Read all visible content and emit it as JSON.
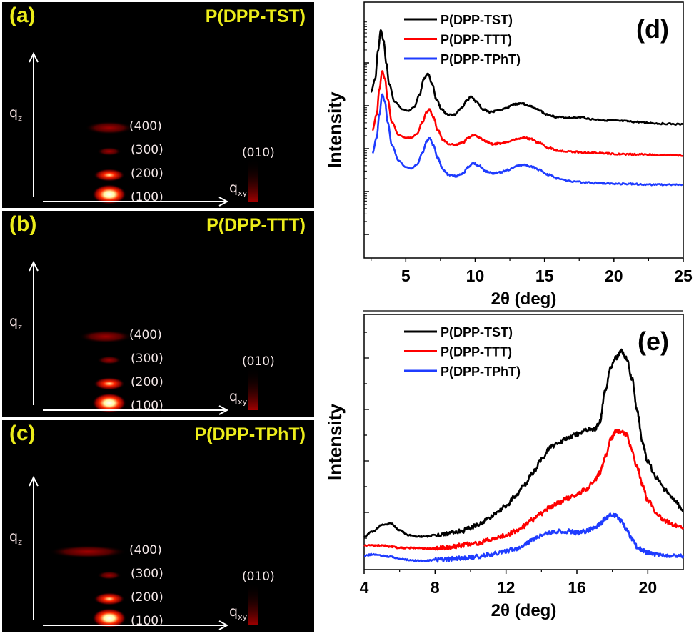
{
  "gixd_panels": [
    {
      "label": "(a)",
      "title": "P(DPP-TST)",
      "qz_label": "q",
      "qz_sub": "z",
      "qxy_label": "q",
      "qxy_sub": "xy",
      "reflections": [
        "(400)",
        "(300)",
        "(200)",
        "(100)",
        "(010)"
      ]
    },
    {
      "label": "(b)",
      "title": "P(DPP-TTT)",
      "qz_label": "q",
      "qz_sub": "z",
      "qxy_label": "q",
      "qxy_sub": "xy",
      "reflections": [
        "(400)",
        "(300)",
        "(200)",
        "(100)",
        "(010)"
      ]
    },
    {
      "label": "(c)",
      "title": "P(DPP-TPhT)",
      "qz_label": "q",
      "qz_sub": "z",
      "qxy_label": "q",
      "qxy_sub": "xy",
      "reflections": [
        "(400)",
        "(300)",
        "(200)",
        "(100)",
        "(010)"
      ]
    }
  ],
  "colors": {
    "TST": "#000000",
    "TTT": "#ff0000",
    "TPhT": "#1f3cff",
    "panel_text": "#ecec1a"
  },
  "chart_data": [
    {
      "type": "line",
      "panel_label": "(d)",
      "title": "",
      "xlabel": "2θ (deg)",
      "ylabel": "Intensity",
      "xlim": [
        2,
        25
      ],
      "ylog": true,
      "ylim": [
        0,
        10
      ],
      "xticks": [
        5,
        10,
        15,
        20,
        25
      ],
      "xtick_labels": [
        "5",
        "10",
        "15",
        "20",
        "25"
      ],
      "yticks_labels_shown": false,
      "legend": {
        "position": "top-left",
        "entries": [
          "P(DPP-TST)",
          "P(DPP-TTT)",
          "P(DPP-TPhT)"
        ]
      },
      "series": [
        {
          "name": "P(DPP-TST)",
          "color": "#000000",
          "x": [
            2.5,
            2.8,
            3.0,
            3.2,
            3.4,
            3.6,
            3.8,
            4.2,
            4.8,
            5.2,
            5.6,
            6.0,
            6.3,
            6.6,
            6.9,
            7.2,
            7.6,
            8.0,
            8.5,
            9.0,
            9.4,
            9.7,
            10.1,
            10.6,
            11.1,
            11.6,
            12.2,
            12.8,
            13.3,
            13.9,
            14.5,
            15.2,
            16.0,
            17.0,
            17.6,
            18.5,
            19.5,
            20.5,
            21.5,
            22.5,
            23.5,
            25.0
          ],
          "y": [
            6.5,
            7.0,
            8.1,
            8.9,
            8.5,
            7.6,
            6.8,
            6.1,
            5.8,
            5.75,
            5.9,
            6.4,
            7.0,
            7.2,
            6.8,
            6.2,
            5.8,
            5.6,
            5.6,
            5.85,
            6.15,
            6.3,
            6.1,
            5.8,
            5.7,
            5.75,
            5.85,
            6.0,
            6.05,
            5.95,
            5.8,
            5.6,
            5.5,
            5.48,
            5.5,
            5.42,
            5.38,
            5.35,
            5.32,
            5.28,
            5.25,
            5.22
          ]
        },
        {
          "name": "P(DPP-TTT)",
          "color": "#ff0000",
          "x": [
            2.6,
            2.9,
            3.1,
            3.3,
            3.5,
            3.7,
            4.0,
            4.5,
            5.0,
            5.4,
            5.8,
            6.2,
            6.5,
            6.7,
            7.0,
            7.3,
            7.7,
            8.1,
            8.6,
            9.1,
            9.5,
            9.9,
            10.3,
            10.8,
            11.3,
            11.8,
            12.4,
            13.0,
            13.5,
            14.0,
            14.6,
            15.3,
            16.0,
            17.0,
            18.0,
            19.0,
            20.0,
            21.0,
            22.0,
            23.0,
            24.0,
            25.0
          ],
          "y": [
            5.0,
            5.6,
            6.6,
            7.3,
            7.0,
            6.2,
            5.3,
            4.8,
            4.7,
            4.7,
            4.85,
            5.3,
            5.7,
            5.8,
            5.5,
            5.0,
            4.6,
            4.45,
            4.42,
            4.5,
            4.7,
            4.8,
            4.7,
            4.55,
            4.45,
            4.48,
            4.55,
            4.65,
            4.7,
            4.65,
            4.5,
            4.3,
            4.2,
            4.15,
            4.12,
            4.1,
            4.07,
            4.05,
            4.05,
            4.03,
            4.02,
            4.0
          ]
        },
        {
          "name": "P(DPP-TPhT)",
          "color": "#1f3cff",
          "x": [
            2.6,
            2.9,
            3.1,
            3.3,
            3.5,
            3.7,
            4.0,
            4.5,
            5.0,
            5.4,
            5.8,
            6.2,
            6.5,
            6.7,
            7.0,
            7.3,
            7.7,
            8.1,
            8.6,
            9.1,
            9.5,
            9.9,
            10.3,
            10.8,
            11.3,
            11.8,
            12.4,
            13.0,
            13.5,
            14.0,
            14.6,
            15.3,
            16.0,
            17.0,
            18.0,
            19.0,
            20.0,
            21.0,
            22.0,
            23.0,
            24.0,
            25.0
          ],
          "y": [
            4.1,
            4.7,
            5.6,
            6.4,
            6.1,
            5.3,
            4.4,
            3.8,
            3.55,
            3.5,
            3.65,
            4.1,
            4.55,
            4.7,
            4.4,
            3.9,
            3.45,
            3.25,
            3.2,
            3.3,
            3.55,
            3.7,
            3.6,
            3.38,
            3.32,
            3.35,
            3.45,
            3.6,
            3.65,
            3.58,
            3.45,
            3.25,
            3.1,
            3.0,
            2.95,
            2.92,
            2.9,
            2.9,
            2.88,
            2.87,
            2.87,
            2.86
          ]
        }
      ]
    },
    {
      "type": "line",
      "panel_label": "(e)",
      "title": "",
      "xlabel": "2θ (deg)",
      "ylabel": "Intensity",
      "xlim": [
        4,
        22
      ],
      "ylim": [
        0,
        10
      ],
      "xticks": [
        4,
        8,
        12,
        16,
        20
      ],
      "xtick_labels": [
        "4",
        "8",
        "12",
        "16",
        "20"
      ],
      "yticks_labels_shown": false,
      "legend": {
        "position": "top-left",
        "entries": [
          "P(DPP-TST)",
          "P(DPP-TTT)",
          "P(DPP-TPhT)"
        ]
      },
      "series": [
        {
          "name": "P(DPP-TST)",
          "color": "#000000",
          "x": [
            4.0,
            4.5,
            5.0,
            5.5,
            6.0,
            6.5,
            7.0,
            7.5,
            8.0,
            8.5,
            9.0,
            9.5,
            10.0,
            10.5,
            11.0,
            11.5,
            12.0,
            12.5,
            13.0,
            13.5,
            14.0,
            14.5,
            15.0,
            15.5,
            16.0,
            16.5,
            17.0,
            17.3,
            17.6,
            17.9,
            18.2,
            18.5,
            18.8,
            19.1,
            19.4,
            19.7,
            20.0,
            20.5,
            21.0,
            21.5,
            22.0
          ],
          "y": [
            1.3,
            1.5,
            1.75,
            1.8,
            1.55,
            1.35,
            1.3,
            1.3,
            1.35,
            1.4,
            1.45,
            1.5,
            1.65,
            1.8,
            2.0,
            2.25,
            2.5,
            2.85,
            3.3,
            3.8,
            4.3,
            4.8,
            5.0,
            5.15,
            5.3,
            5.45,
            5.5,
            5.8,
            7.0,
            7.9,
            8.3,
            8.55,
            8.3,
            7.5,
            6.2,
            5.0,
            4.2,
            3.6,
            3.1,
            2.7,
            2.3
          ]
        },
        {
          "name": "P(DPP-TTT)",
          "color": "#ff0000",
          "x": [
            4.0,
            4.5,
            5.0,
            5.5,
            6.0,
            6.5,
            7.0,
            7.5,
            8.0,
            8.5,
            9.0,
            9.5,
            10.0,
            10.5,
            11.0,
            11.5,
            12.0,
            12.5,
            13.0,
            13.5,
            14.0,
            14.5,
            15.0,
            15.5,
            16.0,
            16.5,
            17.0,
            17.3,
            17.6,
            17.9,
            18.2,
            18.5,
            18.8,
            19.1,
            19.4,
            19.7,
            20.0,
            20.5,
            21.0,
            21.5,
            22.0
          ],
          "y": [
            0.95,
            0.95,
            0.95,
            0.9,
            0.85,
            0.85,
            0.85,
            0.82,
            0.82,
            0.85,
            0.9,
            0.95,
            1.0,
            1.05,
            1.15,
            1.25,
            1.35,
            1.5,
            1.7,
            1.95,
            2.2,
            2.45,
            2.65,
            2.8,
            2.95,
            3.15,
            3.5,
            3.8,
            4.4,
            5.1,
            5.4,
            5.4,
            5.3,
            4.7,
            4.0,
            3.3,
            2.7,
            2.2,
            1.9,
            1.75,
            1.65
          ]
        },
        {
          "name": "P(DPP-TPhT)",
          "color": "#1f3cff",
          "x": [
            4.0,
            4.5,
            5.0,
            5.5,
            6.0,
            6.5,
            7.0,
            7.5,
            8.0,
            8.5,
            9.0,
            9.5,
            10.0,
            10.5,
            11.0,
            11.5,
            12.0,
            12.5,
            13.0,
            13.5,
            14.0,
            14.5,
            15.0,
            15.5,
            16.0,
            16.5,
            17.0,
            17.3,
            17.6,
            17.9,
            18.2,
            18.5,
            18.8,
            19.1,
            19.4,
            19.7,
            20.0,
            20.5,
            21.0,
            21.5,
            22.0
          ],
          "y": [
            0.55,
            0.6,
            0.55,
            0.5,
            0.42,
            0.38,
            0.35,
            0.35,
            0.38,
            0.4,
            0.42,
            0.45,
            0.48,
            0.52,
            0.58,
            0.65,
            0.72,
            0.82,
            0.95,
            1.15,
            1.35,
            1.45,
            1.5,
            1.5,
            1.45,
            1.5,
            1.65,
            1.8,
            2.0,
            2.15,
            2.1,
            1.9,
            1.6,
            1.2,
            0.9,
            0.75,
            0.65,
            0.6,
            0.55,
            0.52,
            0.55
          ]
        }
      ]
    }
  ]
}
